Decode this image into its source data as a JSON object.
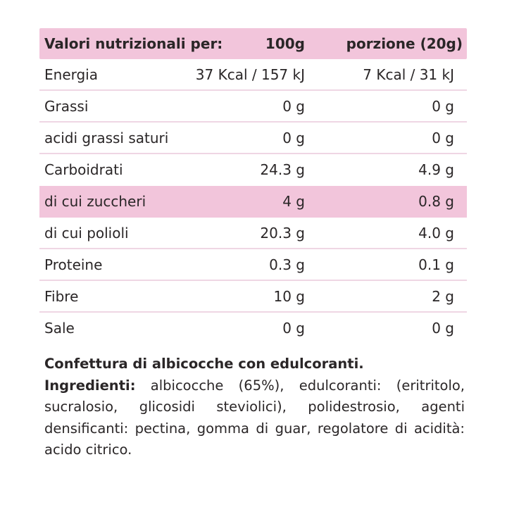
{
  "table": {
    "header": {
      "label": "Valori nutrizionali per:",
      "per_100g": "100g",
      "per_portion": "porzione (20g)"
    },
    "rows": [
      {
        "label": "Energia",
        "per_100g": "37 Kcal / 157 kJ",
        "per_portion": "7 Kcal / 31 kJ",
        "highlight": false
      },
      {
        "label": "Grassi",
        "per_100g": "0 g",
        "per_portion": "0 g",
        "highlight": false
      },
      {
        "label": "acidi grassi saturi",
        "per_100g": "0 g",
        "per_portion": "0 g",
        "highlight": false
      },
      {
        "label": "Carboidrati",
        "per_100g": "24.3 g",
        "per_portion": "4.9 g",
        "highlight": false
      },
      {
        "label": "di cui zuccheri",
        "per_100g": "4 g",
        "per_portion": "0.8 g",
        "highlight": true
      },
      {
        "label": "di cui polioli",
        "per_100g": "20.3 g",
        "per_portion": "4.0 g",
        "highlight": false
      },
      {
        "label": "Proteine",
        "per_100g": "0.3 g",
        "per_portion": "0.1 g",
        "highlight": false
      },
      {
        "label": "Fibre",
        "per_100g": "10 g",
        "per_portion": "2 g",
        "highlight": false
      },
      {
        "label": "Sale",
        "per_100g": "0 g",
        "per_portion": "0 g",
        "highlight": false
      }
    ]
  },
  "description": {
    "title": "Confettura di albicocche con edulcoranti.",
    "ingredients_label": "Ingredienti:",
    "ingredients_text": "albicocche (65%), edulcoranti: (eritritolo, sucralosio, glicosidi steviolici), polidestrosio, agenti densificanti: pectina, gomma di guar, regolatore di acidità: acido citrico."
  },
  "colors": {
    "highlight_pink": "#F2C5DB",
    "divider_pink": "#EFD6E4",
    "text_dark": "#2A2627",
    "background": "#FFFFFF"
  }
}
